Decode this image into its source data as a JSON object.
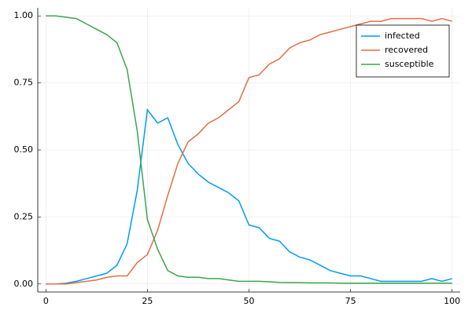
{
  "chart_data": {
    "type": "line",
    "x": [
      0,
      2.5,
      5,
      7.5,
      10,
      12.5,
      15,
      17.5,
      20,
      22.5,
      25,
      27.5,
      30,
      32.5,
      35,
      37.5,
      40,
      42.5,
      45,
      47.5,
      50,
      52.5,
      55,
      57.5,
      60,
      62.5,
      65,
      67.5,
      70,
      72.5,
      75,
      77.5,
      80,
      82.5,
      85,
      87.5,
      90,
      92.5,
      95,
      97.5,
      100
    ],
    "series": [
      {
        "name": "infected",
        "color": "#009af9",
        "values": [
          0,
          0,
          0.003,
          0.01,
          0.02,
          0.03,
          0.04,
          0.07,
          0.15,
          0.35,
          0.65,
          0.6,
          0.62,
          0.52,
          0.45,
          0.41,
          0.38,
          0.36,
          0.34,
          0.31,
          0.22,
          0.21,
          0.17,
          0.16,
          0.12,
          0.1,
          0.09,
          0.07,
          0.05,
          0.04,
          0.03,
          0.03,
          0.02,
          0.01,
          0.01,
          0.01,
          0.01,
          0.01,
          0.02,
          0.01,
          0.02
        ]
      },
      {
        "name": "recovered",
        "color": "#e26f46",
        "values": [
          0,
          0,
          0,
          0.005,
          0.01,
          0.015,
          0.025,
          0.03,
          0.03,
          0.08,
          0.11,
          0.2,
          0.33,
          0.45,
          0.53,
          0.56,
          0.6,
          0.62,
          0.65,
          0.68,
          0.77,
          0.78,
          0.82,
          0.84,
          0.88,
          0.9,
          0.91,
          0.93,
          0.94,
          0.95,
          0.96,
          0.97,
          0.98,
          0.98,
          0.99,
          0.99,
          0.99,
          0.99,
          0.98,
          0.99,
          0.98
        ]
      },
      {
        "name": "susceptible",
        "color": "#3da44d",
        "values": [
          1,
          1,
          0.995,
          0.99,
          0.97,
          0.95,
          0.93,
          0.9,
          0.8,
          0.57,
          0.24,
          0.13,
          0.05,
          0.03,
          0.025,
          0.025,
          0.02,
          0.02,
          0.015,
          0.01,
          0.01,
          0.01,
          0.008,
          0.006,
          0.005,
          0.005,
          0.004,
          0.004,
          0.004,
          0.003,
          0.003,
          0.003,
          0.003,
          0.003,
          0.003,
          0.003,
          0.003,
          0.003,
          0.003,
          0.003,
          0.003
        ]
      }
    ],
    "xlim": [
      -2,
      102
    ],
    "xticks": [
      0,
      25,
      50,
      75,
      100
    ],
    "ylim": [
      -0.03,
      1.03
    ],
    "yticks": [
      {
        "value": 0,
        "label": "0.00"
      },
      {
        "value": 0.25,
        "label": "0.25"
      },
      {
        "value": 0.5,
        "label": "0.50"
      },
      {
        "value": 0.75,
        "label": "0.75"
      },
      {
        "value": 1,
        "label": "1.00"
      }
    ],
    "grid": true,
    "legend": "top-right"
  }
}
